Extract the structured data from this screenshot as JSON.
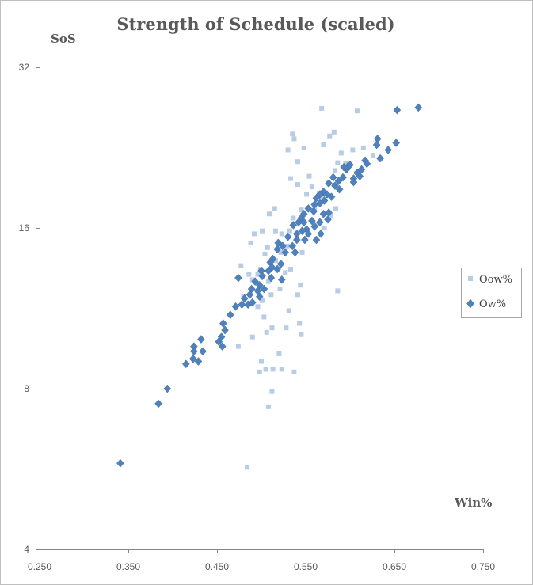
{
  "chart_data": {
    "type": "scatter",
    "title": "Strength of Schedule (scaled)",
    "xlabel": "Win%",
    "ylabel": "SoS",
    "xlim": [
      0.25,
      0.75
    ],
    "ylim": [
      4,
      32
    ],
    "yscale": "log2",
    "xticks": [
      "0.250",
      "0.350",
      "0.450",
      "0.550",
      "0.650",
      "0.750"
    ],
    "yticks": [
      "4",
      "8",
      "16",
      "32"
    ],
    "grid": false,
    "legend": "right",
    "colors": {
      "Oow%": "#b8cce4",
      "Ow%": "#4f81bd"
    },
    "series": [
      {
        "name": "Oow%",
        "marker": "square",
        "points": [
          [
            0.568,
            26.8
          ],
          [
            0.608,
            26.5
          ],
          [
            0.535,
            24.0
          ],
          [
            0.537,
            23.5
          ],
          [
            0.582,
            24.2
          ],
          [
            0.577,
            23.8
          ],
          [
            0.548,
            22.6
          ],
          [
            0.57,
            22.9
          ],
          [
            0.59,
            22.1
          ],
          [
            0.615,
            22.6
          ],
          [
            0.603,
            22.4
          ],
          [
            0.626,
            21.9
          ],
          [
            0.53,
            22.4
          ],
          [
            0.541,
            21.3
          ],
          [
            0.586,
            21.2
          ],
          [
            0.595,
            21.1
          ],
          [
            0.583,
            20.5
          ],
          [
            0.554,
            20.0
          ],
          [
            0.541,
            19.3
          ],
          [
            0.533,
            19.8
          ],
          [
            0.557,
            19.1
          ],
          [
            0.551,
            18.5
          ],
          [
            0.569,
            18.3
          ],
          [
            0.56,
            17.7
          ],
          [
            0.545,
            17.3
          ],
          [
            0.584,
            17.4
          ],
          [
            0.578,
            16.9
          ],
          [
            0.557,
            16.5
          ],
          [
            0.561,
            16.2
          ],
          [
            0.571,
            16.0
          ],
          [
            0.536,
            16.7
          ],
          [
            0.515,
            17.4
          ],
          [
            0.509,
            17.0
          ],
          [
            0.532,
            15.8
          ],
          [
            0.523,
            15.6
          ],
          [
            0.501,
            15.8
          ],
          [
            0.492,
            15.6
          ],
          [
            0.488,
            15.0
          ],
          [
            0.507,
            14.7
          ],
          [
            0.522,
            14.4
          ],
          [
            0.504,
            14.3
          ],
          [
            0.516,
            13.9
          ],
          [
            0.499,
            13.4
          ],
          [
            0.496,
            13.1
          ],
          [
            0.486,
            13.1
          ],
          [
            0.477,
            13.6
          ],
          [
            0.49,
            12.8
          ],
          [
            0.508,
            12.7
          ],
          [
            0.527,
            13.2
          ],
          [
            0.533,
            13.4
          ],
          [
            0.521,
            12.3
          ],
          [
            0.544,
            12.5
          ],
          [
            0.541,
            12.0
          ],
          [
            0.511,
            12.0
          ],
          [
            0.501,
            11.7
          ],
          [
            0.48,
            11.9
          ],
          [
            0.496,
            11.4
          ],
          [
            0.531,
            11.2
          ],
          [
            0.503,
            10.9
          ],
          [
            0.512,
            10.4
          ],
          [
            0.528,
            10.4
          ],
          [
            0.545,
            10.1
          ],
          [
            0.543,
            10.6
          ],
          [
            0.506,
            10.2
          ],
          [
            0.49,
            10.0
          ],
          [
            0.474,
            9.6
          ],
          [
            0.52,
            9.3
          ],
          [
            0.5,
            9.0
          ],
          [
            0.505,
            8.7
          ],
          [
            0.513,
            8.7
          ],
          [
            0.523,
            8.7
          ],
          [
            0.498,
            8.6
          ],
          [
            0.537,
            8.6
          ],
          [
            0.512,
            7.9
          ],
          [
            0.508,
            7.4
          ],
          [
            0.484,
            5.7
          ],
          [
            0.586,
            12.2
          ],
          [
            0.546,
            14.4
          ],
          [
            0.529,
            14.8
          ],
          [
            0.516,
            15.8
          ],
          [
            0.56,
            17.3
          ],
          [
            0.565,
            18.6
          ]
        ]
      },
      {
        "name": "Ow%",
        "marker": "diamond",
        "points": [
          [
            0.677,
            26.9
          ],
          [
            0.653,
            26.6
          ],
          [
            0.631,
            23.5
          ],
          [
            0.63,
            22.9
          ],
          [
            0.652,
            23.1
          ],
          [
            0.643,
            22.4
          ],
          [
            0.634,
            21.6
          ],
          [
            0.617,
            21.4
          ],
          [
            0.619,
            21.1
          ],
          [
            0.613,
            20.6
          ],
          [
            0.608,
            20.3
          ],
          [
            0.611,
            20.0
          ],
          [
            0.598,
            20.9
          ],
          [
            0.593,
            20.8
          ],
          [
            0.596,
            20.6
          ],
          [
            0.6,
            21.0
          ],
          [
            0.604,
            19.8
          ],
          [
            0.592,
            19.9
          ],
          [
            0.581,
            19.9
          ],
          [
            0.587,
            19.6
          ],
          [
            0.576,
            19.4
          ],
          [
            0.583,
            19.2
          ],
          [
            0.588,
            18.9
          ],
          [
            0.57,
            18.7
          ],
          [
            0.566,
            18.5
          ],
          [
            0.574,
            18.5
          ],
          [
            0.579,
            18.3
          ],
          [
            0.562,
            18.2
          ],
          [
            0.571,
            18.0
          ],
          [
            0.566,
            17.8
          ],
          [
            0.56,
            17.7
          ],
          [
            0.553,
            17.4
          ],
          [
            0.559,
            17.2
          ],
          [
            0.57,
            17.0
          ],
          [
            0.576,
            17.1
          ],
          [
            0.548,
            17.0
          ],
          [
            0.545,
            16.7
          ],
          [
            0.557,
            16.5
          ],
          [
            0.548,
            16.4
          ],
          [
            0.542,
            16.4
          ],
          [
            0.536,
            16.2
          ],
          [
            0.566,
            16.4
          ],
          [
            0.575,
            16.6
          ],
          [
            0.56,
            16.1
          ],
          [
            0.551,
            15.9
          ],
          [
            0.546,
            15.8
          ],
          [
            0.54,
            15.6
          ],
          [
            0.553,
            15.6
          ],
          [
            0.53,
            15.4
          ],
          [
            0.54,
            15.2
          ],
          [
            0.549,
            15.2
          ],
          [
            0.562,
            15.2
          ],
          [
            0.567,
            15.6
          ],
          [
            0.519,
            15.0
          ],
          [
            0.524,
            14.8
          ],
          [
            0.535,
            14.8
          ],
          [
            0.527,
            14.4
          ],
          [
            0.518,
            14.6
          ],
          [
            0.538,
            14.4
          ],
          [
            0.513,
            14.0
          ],
          [
            0.51,
            13.8
          ],
          [
            0.522,
            13.7
          ],
          [
            0.512,
            13.5
          ],
          [
            0.518,
            13.4
          ],
          [
            0.508,
            13.3
          ],
          [
            0.5,
            13.3
          ],
          [
            0.501,
            13.0
          ],
          [
            0.511,
            12.9
          ],
          [
            0.523,
            12.8
          ],
          [
            0.493,
            12.7
          ],
          [
            0.498,
            12.5
          ],
          [
            0.503,
            12.3
          ],
          [
            0.496,
            12.2
          ],
          [
            0.474,
            12.9
          ],
          [
            0.489,
            12.3
          ],
          [
            0.487,
            12.0
          ],
          [
            0.481,
            11.8
          ],
          [
            0.498,
            11.9
          ],
          [
            0.485,
            11.5
          ],
          [
            0.49,
            11.6
          ],
          [
            0.478,
            11.5
          ],
          [
            0.471,
            11.4
          ],
          [
            0.465,
            11.0
          ],
          [
            0.457,
            10.6
          ],
          [
            0.459,
            10.3
          ],
          [
            0.455,
            10.0
          ],
          [
            0.452,
            9.8
          ],
          [
            0.456,
            9.6
          ],
          [
            0.432,
            9.9
          ],
          [
            0.424,
            9.6
          ],
          [
            0.434,
            9.4
          ],
          [
            0.424,
            9.4
          ],
          [
            0.423,
            9.1
          ],
          [
            0.429,
            9.0
          ],
          [
            0.415,
            8.9
          ],
          [
            0.394,
            8.0
          ],
          [
            0.384,
            7.5
          ],
          [
            0.341,
            5.8
          ],
          [
            0.604,
            19.5
          ]
        ]
      }
    ]
  }
}
